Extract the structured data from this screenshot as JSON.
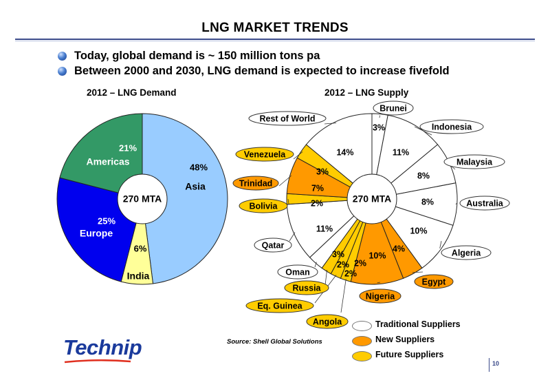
{
  "header": {
    "title": "LNG MARKET TRENDS"
  },
  "bullets": [
    "Today, global demand is ~ 150 million tons pa",
    "Between 2000 and 2030, LNG demand is expected to increase fivefold"
  ],
  "source": "Source: Shell Global Solutions",
  "logo": {
    "text": "Technip"
  },
  "page_number": "10",
  "colors": {
    "traditional": "#ffffff",
    "new": "#ff9900",
    "future": "#ffcc00",
    "asia": "#99ccff",
    "americas": "#339966",
    "europe": "#0000ee",
    "india": "#ffff99",
    "rule": "#3a4a8a"
  },
  "legend": [
    {
      "label": "Traditional Suppliers",
      "color": "#ffffff"
    },
    {
      "label": "New Suppliers",
      "color": "#ff9900"
    },
    {
      "label": "Future Suppliers",
      "color": "#ffcc00"
    }
  ],
  "chart_data": [
    {
      "type": "pie",
      "title": "2012 – LNG Demand",
      "center_label": "270 MTA",
      "slices": [
        {
          "name": "Asia",
          "value": 48,
          "label": "48%",
          "color": "#99ccff"
        },
        {
          "name": "India",
          "value": 6,
          "label": "6%",
          "color": "#ffff99"
        },
        {
          "name": "Europe",
          "value": 25,
          "label": "25%",
          "color": "#0000ee"
        },
        {
          "name": "Americas",
          "value": 21,
          "label": "21%",
          "color": "#339966"
        }
      ]
    },
    {
      "type": "pie",
      "title": "2012 – LNG Supply",
      "center_label": "270 MTA",
      "slices": [
        {
          "name": "Brunei",
          "value": 3,
          "label": "3%",
          "group": "traditional"
        },
        {
          "name": "Indonesia",
          "value": 11,
          "label": "11%",
          "group": "traditional"
        },
        {
          "name": "Malaysia",
          "value": 8,
          "label": "8%",
          "group": "traditional"
        },
        {
          "name": "Australia",
          "value": 8,
          "label": "8%",
          "group": "traditional"
        },
        {
          "name": "Algeria",
          "value": 10,
          "label": "10%",
          "group": "traditional"
        },
        {
          "name": "Egypt",
          "value": 4,
          "label": "4%",
          "group": "new"
        },
        {
          "name": "Nigeria",
          "value": 10,
          "label": "10%",
          "group": "new"
        },
        {
          "name": "Angola",
          "value": 2,
          "label": "2%",
          "group": "future"
        },
        {
          "name": "Eq. Guinea",
          "value": 2,
          "label": "2%",
          "group": "future"
        },
        {
          "name": "Russia",
          "value": 2,
          "label": "2%",
          "group": "future"
        },
        {
          "name": "Oman",
          "value": 3,
          "label": "3%",
          "group": "traditional"
        },
        {
          "name": "Qatar",
          "value": 11,
          "label": "11%",
          "group": "traditional"
        },
        {
          "name": "Bolivia",
          "value": 2,
          "label": "2%",
          "group": "future"
        },
        {
          "name": "Trinidad",
          "value": 7,
          "label": "7%",
          "group": "new"
        },
        {
          "name": "Venezuela",
          "value": 3,
          "label": "3%",
          "group": "future"
        },
        {
          "name": "Rest of World",
          "value": 14,
          "label": "14%",
          "group": "traditional"
        }
      ]
    }
  ]
}
